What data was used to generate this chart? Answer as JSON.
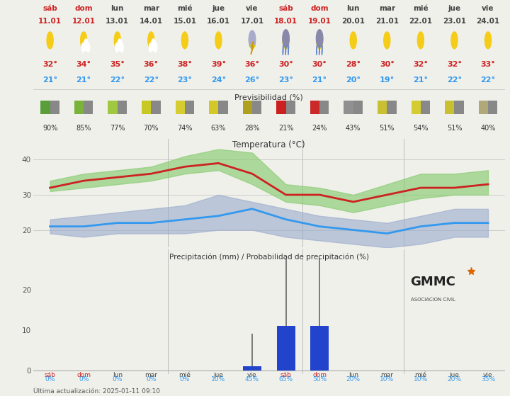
{
  "days": [
    "sáb",
    "dom",
    "lun",
    "mar",
    "mié",
    "jue",
    "vie",
    "sáb",
    "dom",
    "lun",
    "mar",
    "mié",
    "jue",
    "vie"
  ],
  "dates": [
    "11.01",
    "12.01",
    "13.01",
    "14.01",
    "15.01",
    "16.01",
    "17.01",
    "18.01",
    "19.01",
    "20.01",
    "21.01",
    "22.01",
    "23.01",
    "24.01"
  ],
  "temp_max": [
    32,
    34,
    35,
    36,
    38,
    39,
    36,
    30,
    30,
    28,
    30,
    32,
    32,
    33
  ],
  "temp_min": [
    21,
    21,
    22,
    22,
    23,
    24,
    26,
    23,
    21,
    20,
    19,
    21,
    22,
    22
  ],
  "temp_max_upper": [
    34,
    36,
    37,
    38,
    41,
    43,
    42,
    33,
    32,
    30,
    33,
    36,
    36,
    37
  ],
  "temp_max_lower": [
    31,
    32,
    33,
    34,
    36,
    37,
    33,
    28,
    27,
    25,
    27,
    29,
    30,
    30
  ],
  "temp_min_upper": [
    23,
    24,
    25,
    26,
    27,
    30,
    28,
    26,
    24,
    23,
    22,
    24,
    26,
    26
  ],
  "temp_min_lower": [
    19,
    18,
    19,
    19,
    19,
    20,
    20,
    18,
    17,
    16,
    15,
    16,
    18,
    18
  ],
  "previsibilidad": [
    90,
    85,
    77,
    70,
    74,
    63,
    28,
    21,
    24,
    43,
    51,
    54,
    51,
    40
  ],
  "prev_left_colors": [
    "#5a9e3a",
    "#7ab33c",
    "#a0c840",
    "#c8c822",
    "#d4cc30",
    "#d4c828",
    "#b0a020",
    "#cc2020",
    "#cc2828",
    "#909090",
    "#c8c030",
    "#d4cc30",
    "#c8c030",
    "#b0a878"
  ],
  "prev_right_color": "#888888",
  "precip_mm": [
    0,
    0,
    0,
    0,
    0,
    0,
    1,
    11,
    11,
    0,
    0,
    0,
    0,
    0
  ],
  "precip_err_upper": [
    0,
    0,
    0,
    0,
    0,
    0,
    9,
    28,
    28,
    0,
    0,
    0,
    0,
    0
  ],
  "precip_prob": [
    "0%",
    "0%",
    "0%",
    "0%",
    "0%",
    "10%",
    "45%",
    "65%",
    "50%",
    "20%",
    "10%",
    "10%",
    "20%",
    "35%"
  ],
  "weekend_indices": [
    0,
    1,
    7,
    8
  ],
  "weekend_color": "#cc2222",
  "normal_color": "#444444",
  "bg_color": "#f0f0eb",
  "title_temp": "Temperatura (°C)",
  "title_prev": "Previsibilidad (%)",
  "title_precip": "Precipitación (mm) / Probabilidad de precipitación (%)",
  "footer": "Última actualización: 2025-01-11 09:10",
  "line_color_max": "#cc2222",
  "line_color_min": "#3399ee",
  "fill_color_max": "#88cc70",
  "fill_color_min": "#99aacc",
  "bar_color": "#2244cc",
  "err_color": "#666666",
  "vline_color": "#bbbbbb",
  "hline_color": "#cccccc",
  "ytick_color": "#555555"
}
